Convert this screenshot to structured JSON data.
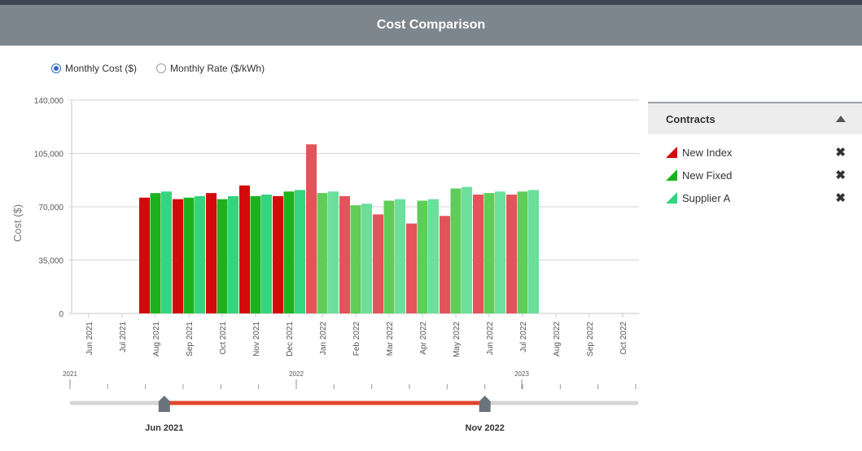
{
  "title": "Cost Comparison",
  "radio_options": [
    {
      "label": "Monthly Cost ($)",
      "checked": true
    },
    {
      "label": "Monthly Rate ($/kWh)",
      "checked": false
    }
  ],
  "legend_panel": {
    "title": "Contracts",
    "items": [
      {
        "label": "New Index",
        "color": "#d40a0a"
      },
      {
        "label": "New Fixed",
        "color": "#1db21d"
      },
      {
        "label": "Supplier A",
        "color": "#35d47e"
      }
    ],
    "remove_glyph": "✖"
  },
  "chart_data": {
    "type": "bar",
    "ylabel": "Cost ($)",
    "ylim": [
      0,
      140000
    ],
    "yticks": [
      "140,000",
      "105,000",
      "70,000",
      "35,000",
      "0"
    ],
    "ytick_values": [
      140000,
      105000,
      70000,
      35000,
      0
    ],
    "categories": [
      "Jun 2021",
      "Jul 2021",
      "Aug 2021",
      "Sep 2021",
      "Oct 2021",
      "Nov 2021",
      "Dec 2021",
      "Jan 2022",
      "Feb 2022",
      "Mar 2022",
      "Apr 2022",
      "May 2022",
      "Jun 2022",
      "Jul 2022",
      "Aug 2022",
      "Sep 2022",
      "Oct 2022"
    ],
    "faded_from_index": 7,
    "series": [
      {
        "name": "New Index",
        "color": "#d40a0a",
        "faded_color": "#e3545a",
        "values": [
          null,
          null,
          76000,
          75000,
          79000,
          84000,
          77000,
          111000,
          77000,
          65000,
          59000,
          64000,
          78000,
          78000,
          null,
          null,
          null
        ]
      },
      {
        "name": "New Fixed",
        "color": "#1db21d",
        "faded_color": "#5fcd57",
        "values": [
          null,
          null,
          79000,
          76000,
          75000,
          77000,
          80000,
          79000,
          71000,
          74000,
          74000,
          82000,
          79000,
          80000,
          null,
          null,
          null
        ]
      },
      {
        "name": "Supplier A",
        "color": "#35d47e",
        "faded_color": "#6bdf9b",
        "values": [
          null,
          null,
          80000,
          77000,
          77000,
          78000,
          81000,
          80000,
          72000,
          75000,
          75000,
          83000,
          80000,
          81000,
          null,
          null,
          null
        ]
      }
    ],
    "grid": true
  },
  "range_slider": {
    "year_labels": [
      "2021",
      "2022",
      "2023"
    ],
    "start_label": "Jun 2021",
    "end_label": "Nov 2022",
    "track_color": "#d6d6d6",
    "range_color": "#e0462e",
    "handle_color": "#6b747c"
  }
}
